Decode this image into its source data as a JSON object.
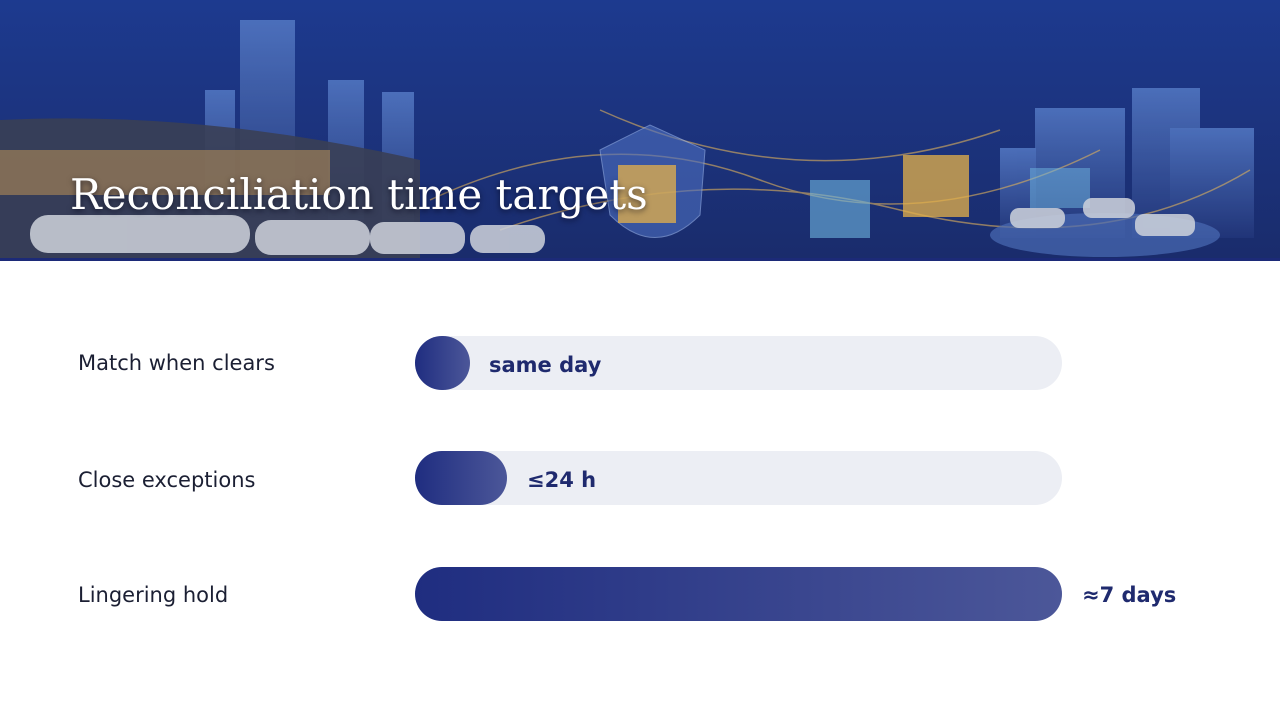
{
  "header": {
    "title": "Reconciliation time targets"
  },
  "rows": [
    {
      "label": "Match when clears",
      "value": "same day"
    },
    {
      "label": "Close exceptions",
      "value": "≤24 h"
    },
    {
      "label": "Lingering hold",
      "value": "≈7 days"
    }
  ]
}
